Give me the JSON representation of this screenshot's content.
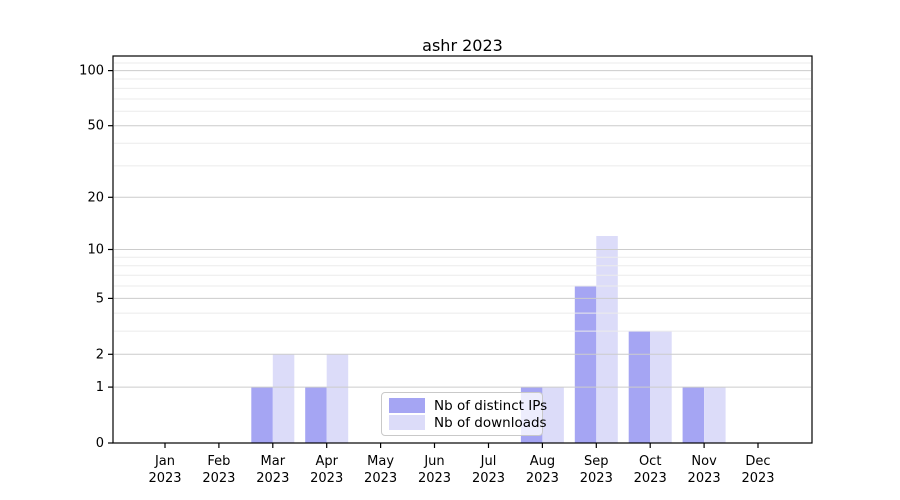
{
  "chart_data": {
    "type": "bar",
    "title": "ashr 2023",
    "categories": [
      "Jan",
      "Feb",
      "Mar",
      "Apr",
      "May",
      "Jun",
      "Jul",
      "Aug",
      "Sep",
      "Oct",
      "Nov",
      "Dec"
    ],
    "category_year": "2023",
    "series": [
      {
        "name": "Nb of distinct IPs",
        "color": "#a5a5f3",
        "values": [
          0,
          0,
          1,
          1,
          0,
          0,
          0,
          1,
          6,
          3,
          1,
          0
        ]
      },
      {
        "name": "Nb of downloads",
        "color": "#dcdcf9",
        "values": [
          0,
          0,
          2,
          2,
          0,
          0,
          0,
          1,
          12,
          3,
          1,
          0
        ]
      }
    ],
    "y_scale": "log1p",
    "y_major_ticks": [
      0,
      1,
      2,
      5,
      10,
      20,
      50,
      100
    ],
    "y_minor_ticks": [
      3,
      4,
      6,
      7,
      8,
      9,
      30,
      40,
      60,
      70,
      80,
      90,
      110
    ],
    "ylim": [
      0,
      120
    ],
    "xlabel": "",
    "ylabel": "",
    "grid": "on",
    "legend_position": "bottom-center",
    "colors": {
      "spine": "#000000",
      "grid_major": "#cccccc",
      "grid_minor": "#ebebeb",
      "text": "#000000"
    }
  }
}
